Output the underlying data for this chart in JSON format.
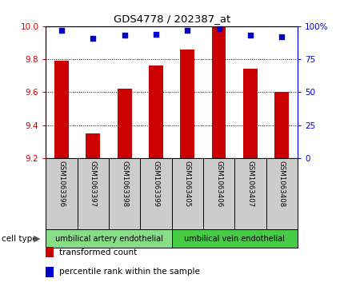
{
  "title": "GDS4778 / 202387_at",
  "samples": [
    "GSM1063396",
    "GSM1063397",
    "GSM1063398",
    "GSM1063399",
    "GSM1063405",
    "GSM1063406",
    "GSM1063407",
    "GSM1063408"
  ],
  "bar_values": [
    9.79,
    9.35,
    9.62,
    9.76,
    9.86,
    10.0,
    9.74,
    9.6
  ],
  "percentile_values": [
    97,
    91,
    93,
    94,
    97,
    98,
    93,
    92
  ],
  "ylim_left": [
    9.2,
    10.0
  ],
  "ylim_right": [
    0,
    100
  ],
  "yticks_left": [
    9.2,
    9.4,
    9.6,
    9.8,
    10.0
  ],
  "yticks_right": [
    0,
    25,
    50,
    75,
    100
  ],
  "ytick_labels_right": [
    "0",
    "25",
    "50",
    "75",
    "100%"
  ],
  "bar_color": "#cc0000",
  "dot_color": "#0000cc",
  "bar_bottom": 9.2,
  "cell_type_groups": [
    {
      "label": "umbilical artery endothelial",
      "start": 0,
      "end": 4,
      "color": "#88dd88"
    },
    {
      "label": "umbilical vein endothelial",
      "start": 4,
      "end": 8,
      "color": "#44cc44"
    }
  ],
  "legend_items": [
    {
      "label": "transformed count",
      "color": "#cc0000"
    },
    {
      "label": "percentile rank within the sample",
      "color": "#0000cc"
    }
  ],
  "cell_type_label": "cell type",
  "background_color": "#ffffff",
  "tick_label_color_left": "#cc0000",
  "tick_label_color_right": "#0000cc",
  "sample_box_color": "#cccccc",
  "bar_width": 0.45
}
